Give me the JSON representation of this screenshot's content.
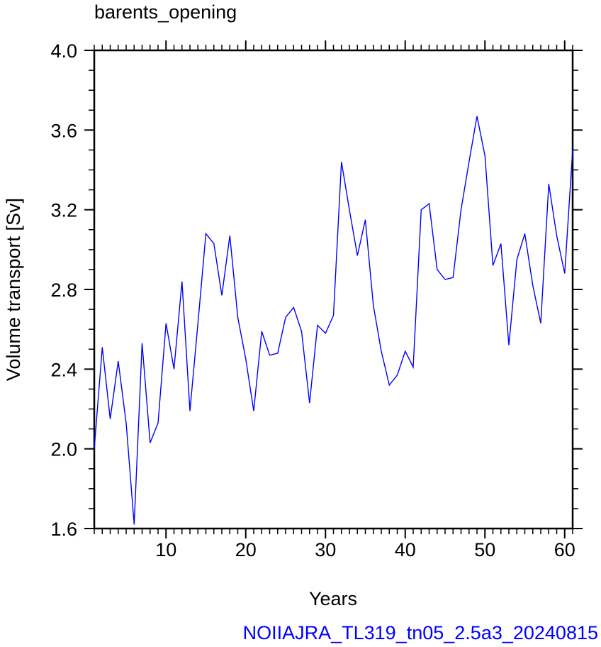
{
  "chart_data": {
    "type": "line",
    "title": "barents_opening",
    "xlabel": "Years",
    "ylabel": "Volume transport [Sv]",
    "footer": "NOIIAJRA_TL319_tn05_2.5a3_20240815",
    "xlim": [
      1,
      61
    ],
    "ylim": [
      1.6,
      4.0
    ],
    "x_ticks": [
      10,
      20,
      30,
      40,
      50,
      60
    ],
    "x_tick_labels": [
      "10",
      "20",
      "30",
      "40",
      "50",
      "60"
    ],
    "y_ticks": [
      1.6,
      2.0,
      2.4,
      2.8,
      3.2,
      3.6,
      4.0
    ],
    "y_tick_labels": [
      "1.6",
      "2.0",
      "2.4",
      "2.8",
      "3.2",
      "3.6",
      "4.0"
    ],
    "grid": false,
    "line_color": "#0000ff",
    "footer_color": "#0000ff",
    "series": [
      {
        "x": [
          1,
          2,
          3,
          4,
          5,
          6,
          7,
          8,
          9,
          10,
          11,
          12,
          13,
          14,
          15,
          16,
          17,
          18,
          19,
          20,
          21,
          22,
          23,
          24,
          25,
          26,
          27,
          28,
          29,
          30,
          31,
          32,
          33,
          34,
          35,
          36,
          37,
          38,
          39,
          40,
          41,
          42,
          43,
          44,
          45,
          46,
          47,
          48,
          49,
          50,
          51,
          52,
          53,
          54,
          55,
          56,
          57,
          58,
          59,
          60,
          61
        ],
        "values": [
          2.0,
          2.51,
          2.15,
          2.44,
          2.13,
          1.62,
          2.53,
          2.03,
          2.13,
          2.63,
          2.4,
          2.84,
          2.19,
          2.63,
          3.08,
          3.03,
          2.77,
          3.07,
          2.66,
          2.45,
          2.19,
          2.59,
          2.47,
          2.48,
          2.66,
          2.71,
          2.59,
          2.23,
          2.62,
          2.58,
          2.67,
          3.44,
          3.2,
          2.97,
          3.15,
          2.72,
          2.49,
          2.32,
          2.37,
          2.49,
          2.41,
          3.2,
          3.23,
          2.9,
          2.85,
          2.86,
          3.2,
          3.44,
          3.67,
          3.47,
          2.92,
          3.03,
          2.52,
          2.95,
          3.08,
          2.82,
          2.63,
          3.33,
          3.07,
          2.88,
          3.5
        ]
      }
    ]
  }
}
